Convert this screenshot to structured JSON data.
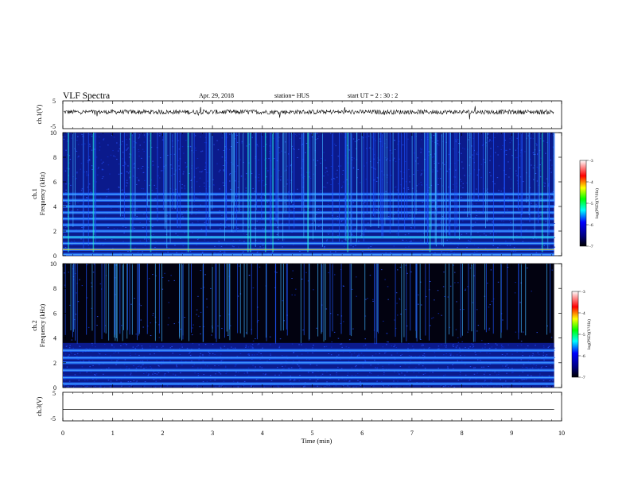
{
  "header": {
    "title": "VLF Spectra",
    "date": "Apr. 29, 2018",
    "station": "station= HUS",
    "start": "start  UT =   2 : 30 : 2"
  },
  "chart_data": [
    {
      "type": "line",
      "panel": "ch1-waveform",
      "ylabel": "ch.1(V)",
      "yticks": [
        "5",
        "-5"
      ],
      "ylim": [
        -5,
        5
      ],
      "xlim": [
        0,
        10
      ],
      "description_of_signal": "noisy trace around +1 V across 0-9.85 min"
    },
    {
      "type": "heatmap",
      "panel": "ch1-spectrogram",
      "ylabel_top": "ch.1",
      "ylabel": "Frequency  (kHz)",
      "yticks": [
        "0",
        "2",
        "4",
        "6",
        "8",
        "10"
      ],
      "ylim": [
        0,
        10
      ],
      "xlim": [
        0,
        10
      ],
      "data_end_min": 9.85,
      "horizontal_bands_khz": [
        0.1,
        0.5,
        1.0,
        1.5,
        2.0,
        2.5,
        3.0,
        3.5,
        4.0,
        4.5,
        5.0
      ],
      "strong_spikes_min": [
        0.1,
        0.6,
        1.35,
        1.75,
        2.5,
        3.7,
        3.75,
        4.05,
        4.2,
        4.9,
        5.7,
        7.35,
        9.6
      ],
      "colorbar": {
        "label": "log(PSD)(V²/Hz)",
        "ticks": [
          "-3",
          "-4",
          "-5",
          "-6",
          "-7"
        ],
        "range": [
          -7,
          -3
        ]
      }
    },
    {
      "type": "heatmap",
      "panel": "ch2-spectrogram",
      "ylabel_top": "ch.2",
      "ylabel": "Frequency  (kHz)",
      "yticks": [
        "0",
        "2",
        "4",
        "6",
        "8",
        "10"
      ],
      "ylim": [
        0,
        10
      ],
      "xlim": [
        0,
        10
      ],
      "data_end_min": 9.85,
      "horizontal_bands_khz": [
        0.3,
        0.8,
        1.4,
        2.0,
        2.4,
        3.0
      ],
      "colorbar": {
        "label": "log(PSD)(V²/Hz)",
        "ticks": [
          "-3",
          "-4",
          "-5",
          "-6",
          "-7"
        ],
        "range": [
          -7,
          -3
        ]
      }
    },
    {
      "type": "line",
      "panel": "ch3-waveform",
      "ylabel": "ch.3(V)",
      "yticks": [
        "5",
        "-5"
      ],
      "ylim": [
        -5,
        5
      ],
      "xlim": [
        0,
        10
      ],
      "flat_value_v": -1
    }
  ],
  "xaxis": {
    "label": "Time  (min)",
    "ticks": [
      "0",
      "1",
      "2",
      "3",
      "4",
      "5",
      "6",
      "7",
      "8",
      "9",
      "10"
    ]
  },
  "colors": {
    "spec_bg1": "#0b1a8c",
    "spec_bg2": "#020210",
    "spec_band": "#1f6bff",
    "spec_hot": "#25ffd0"
  }
}
